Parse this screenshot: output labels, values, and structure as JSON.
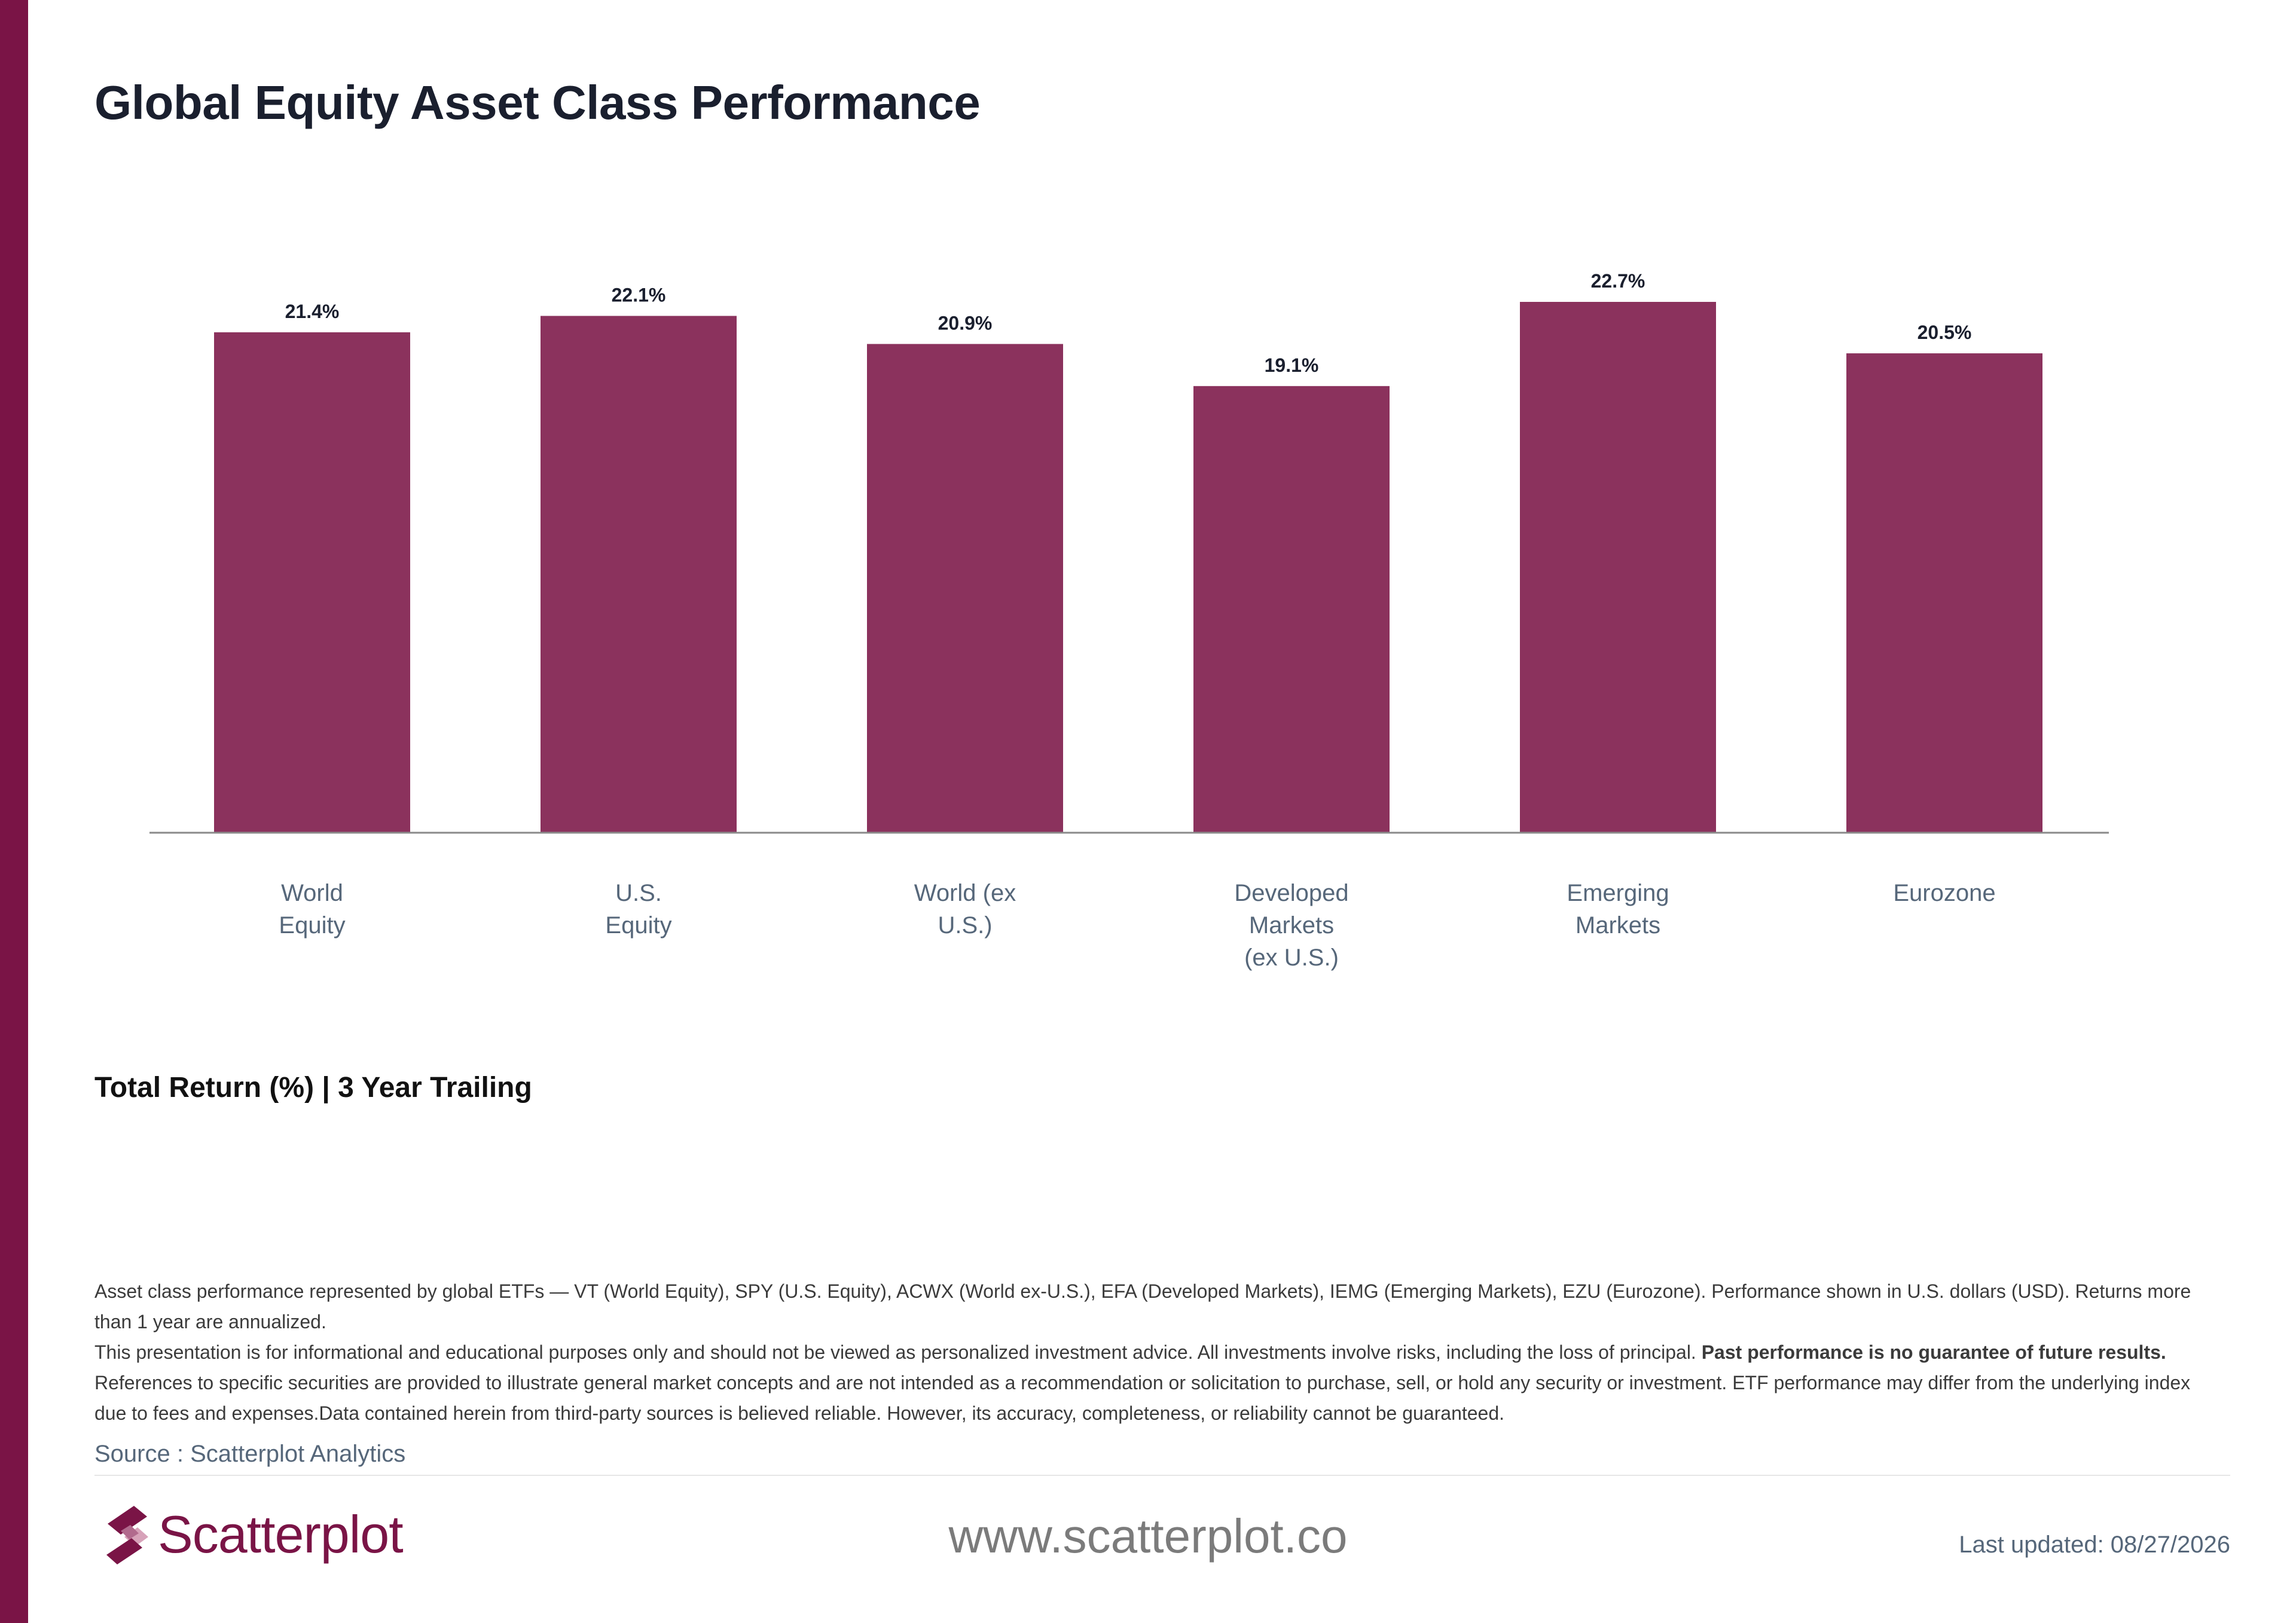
{
  "title": "Global Equity Asset Class Performance",
  "subtitle": "Total Return (%) | 3 Year Trailing",
  "colors": {
    "bar": "#8b325d",
    "accent": "#7a1446",
    "axis": "#8a8a8a"
  },
  "chart_data": {
    "type": "bar",
    "title": "Global Equity Asset Class Performance",
    "xlabel": "",
    "ylabel": "",
    "categories": [
      [
        "World",
        "Equity"
      ],
      [
        "U.S.",
        "Equity"
      ],
      [
        "World (ex",
        "U.S.)"
      ],
      [
        "Developed",
        "Markets",
        "(ex U.S.)"
      ],
      [
        "Emerging",
        "Markets"
      ],
      [
        "Eurozone"
      ]
    ],
    "values": [
      21.4,
      22.1,
      20.9,
      19.1,
      22.7,
      20.5
    ],
    "value_labels": [
      "21.4%",
      "22.1%",
      "20.9%",
      "19.1%",
      "22.7%",
      "20.5%"
    ],
    "ylim": [
      0,
      22.7
    ],
    "grid": false,
    "legend": "none"
  },
  "footnote": {
    "line1": "Asset class performance represented by global ETFs — VT (World Equity), SPY (U.S. Equity), ACWX (World ex-U.S.), EFA (Developed Markets), IEMG (Emerging Markets), EZU (Eurozone). Performance shown in U.S. dollars (USD). Returns more than 1 year are annualized.",
    "line2_start": "This presentation is for informational and educational purposes only and should not be viewed as personalized investment advice. All investments involve risks, including the loss of principal.",
    "line2_bold": "Past performance is no guarantee of future results.",
    "line2_end": "References to specific securities are provided to illustrate general market concepts and are not intended as a recommendation or solicitation to purchase, sell, or hold any security or investment. ETF performance may differ from the underlying index due to fees and expenses.Data contained herein from third-party sources is believed reliable. However, its accuracy, completeness, or reliability cannot be guaranteed."
  },
  "source": "Source : Scatterplot Analytics",
  "brand": {
    "name": "Scatterplot",
    "logo_icon": "scatterplot-logo-icon"
  },
  "website": "www.scatterplot.co",
  "last_updated": "Last updated: 08/27/2026"
}
